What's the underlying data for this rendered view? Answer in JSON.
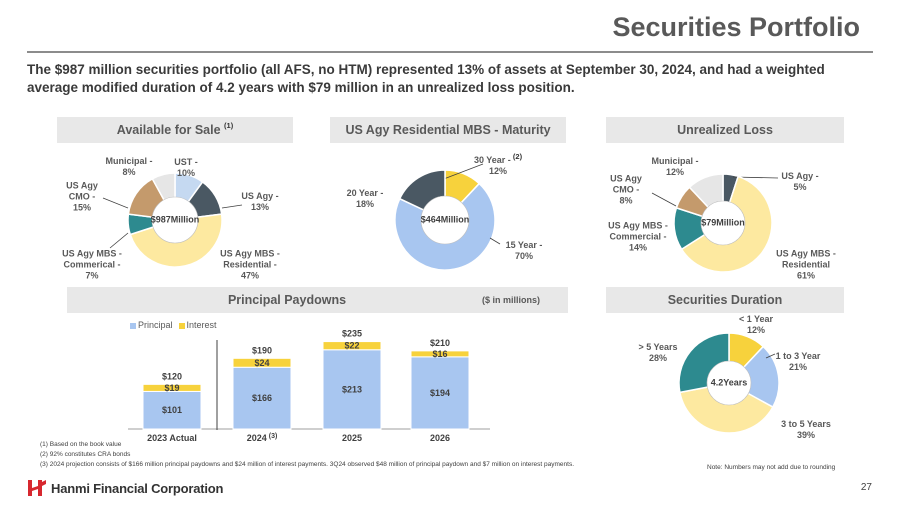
{
  "header": {
    "title": "Securities Portfolio",
    "subtitle": "The $987 million securities portfolio (all AFS, no HTM) represented 13% of assets at September 30, 2024, and had a weighted average modified duration of 4.2 years with $79 million in an unrealized loss position."
  },
  "sections": {
    "afs": "Available for Sale",
    "afs_sup": "(1)",
    "mbs": "US Agy Residential MBS - Maturity",
    "loss": "Unrealized Loss",
    "paydowns": "Principal Paydowns",
    "paydowns_unit": "($ in millions)",
    "duration": "Securities Duration"
  },
  "colors": {
    "ust": "#c5d9f1",
    "us_agy": "#4a5863",
    "mbs_res": "#fde9a0",
    "mbs_comm": "#2d8a8f",
    "cmo": "#c49a6c",
    "municipal": "#e6e6e6",
    "blue": "#a8c6f0",
    "gold": "#f7d23c"
  },
  "chart_data": [
    {
      "type": "pie",
      "title": "Available for Sale",
      "center": [
        "$987",
        "Million"
      ],
      "slices": [
        {
          "name": "UST",
          "value": 10,
          "label": [
            "UST -",
            "10%"
          ]
        },
        {
          "name": "US Agy",
          "value": 13,
          "label": [
            "US Agy -",
            "13%"
          ]
        },
        {
          "name": "US Agy MBS - Residential",
          "value": 47,
          "label": [
            "US Agy MBS -",
            "Residential -",
            "47%"
          ]
        },
        {
          "name": "US Agy MBS - Commerical",
          "value": 7,
          "label": [
            "US Agy MBS -",
            "Commerical  -",
            "7%"
          ]
        },
        {
          "name": "US Agy CMO",
          "value": 15,
          "label": [
            "US Agy",
            "CMO -",
            "15%"
          ]
        },
        {
          "name": "Municipal",
          "value": 8,
          "label": [
            "Municipal -",
            "8%"
          ]
        }
      ]
    },
    {
      "type": "pie",
      "title": "US Agy Residential MBS - Maturity",
      "center": [
        "$464",
        "Million"
      ],
      "slices": [
        {
          "name": "30 Year",
          "value": 12,
          "label": [
            "30 Year -",
            "12%"
          ],
          "sup": "(2)"
        },
        {
          "name": "15 Year",
          "value": 70,
          "label": [
            "15 Year -",
            "70%"
          ]
        },
        {
          "name": "20 Year",
          "value": 18,
          "label": [
            "20 Year -",
            "18%"
          ]
        }
      ]
    },
    {
      "type": "pie",
      "title": "Unrealized Loss",
      "center": [
        "$79",
        "Million"
      ],
      "slices": [
        {
          "name": "US Agy",
          "value": 5,
          "label": [
            "US Agy -",
            "5%"
          ]
        },
        {
          "name": "US Agy MBS - Residential",
          "value": 61,
          "label": [
            "US Agy MBS -",
            "Residential",
            "61%"
          ]
        },
        {
          "name": "US Agy MBS - Commercial",
          "value": 14,
          "label": [
            "US Agy MBS -",
            "Commercial  -",
            "14%"
          ]
        },
        {
          "name": "US Agy CMO",
          "value": 8,
          "label": [
            "US Agy",
            "CMO -",
            "8%"
          ]
        },
        {
          "name": "Municipal",
          "value": 12,
          "label": [
            "Municipal -",
            "12%"
          ]
        }
      ]
    },
    {
      "type": "bar",
      "title": "Principal Paydowns",
      "stacked": true,
      "categories": [
        "2023 Actual",
        "2024",
        "2025",
        "2026"
      ],
      "category_sup": [
        "",
        "(3)",
        "",
        ""
      ],
      "series": [
        {
          "name": "Principal",
          "values": [
            101,
            166,
            213,
            194
          ]
        },
        {
          "name": "Interest",
          "values": [
            19,
            24,
            22,
            16
          ]
        }
      ],
      "totals": [
        120,
        190,
        235,
        210
      ],
      "value_labels": {
        "principal": [
          "$101",
          "$166",
          "$213",
          "$194"
        ],
        "interest": [
          "$19",
          "$24",
          "$22",
          "$16"
        ],
        "totals": [
          "$120",
          "$190",
          "$235",
          "$210"
        ]
      },
      "ylim": [
        0,
        250
      ],
      "legend": "top-left"
    },
    {
      "type": "pie",
      "title": "Securities Duration",
      "center": [
        "4.2",
        "Years"
      ],
      "slices": [
        {
          "name": "< 1 Year",
          "value": 12,
          "label": [
            "< 1 Year",
            "12%"
          ]
        },
        {
          "name": "1 to 3 Year",
          "value": 21,
          "label": [
            "1 to 3 Year",
            "21%"
          ]
        },
        {
          "name": "3 to 5 Years",
          "value": 39,
          "label": [
            "3 to 5 Years",
            "39%"
          ]
        },
        {
          "name": "> 5 Years",
          "value": 28,
          "label": [
            "> 5 Years",
            "28%"
          ]
        }
      ]
    }
  ],
  "footnotes": [
    "(1)   Based on the book value",
    "(2)   92% constitutes CRA bonds",
    "(3)   2024 projection consists of $166 million principal paydowns and $24 million of interest payments. 3Q24 observed $48 million of principal paydown and $7 million on interest payments."
  ],
  "rounding_note": "Note: Numbers may not add due to rounding",
  "footer": {
    "logo_text": "Hanmi Financial Corporation",
    "logo_mark": "H",
    "page_number": "27"
  }
}
